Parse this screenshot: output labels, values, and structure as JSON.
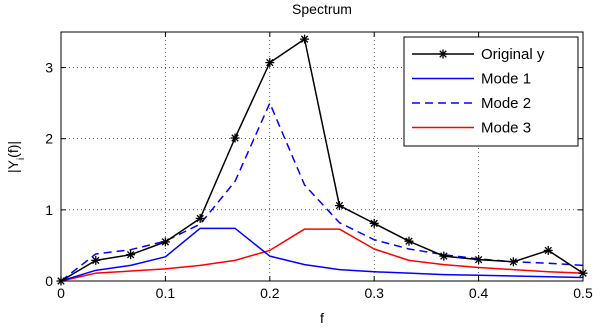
{
  "chart_data": {
    "type": "line",
    "title": "Spectrum",
    "xlabel": "f",
    "ylabel": "|Y_i(f)|",
    "xlim": [
      0,
      0.5
    ],
    "ylim": [
      0,
      3.5
    ],
    "xticks": [
      0,
      0.1,
      0.2,
      0.3,
      0.4,
      0.5
    ],
    "xtick_labels": [
      "0",
      "0.1",
      "0.2",
      "0.3",
      "0.4",
      "0.5"
    ],
    "yticks": [
      0,
      1,
      2,
      3
    ],
    "ytick_labels": [
      "0",
      "1",
      "2",
      "3"
    ],
    "grid": true,
    "legend_position": "top-right",
    "x": [
      0,
      0.0333,
      0.0667,
      0.1,
      0.1333,
      0.1667,
      0.2,
      0.2333,
      0.2667,
      0.3,
      0.3333,
      0.3667,
      0.4,
      0.4333,
      0.4667,
      0.5
    ],
    "series": [
      {
        "name": "Original y",
        "color": "#000000",
        "style": "solid",
        "marker": "*",
        "values": [
          0.0,
          0.29,
          0.37,
          0.55,
          0.88,
          2.01,
          3.07,
          3.4,
          1.06,
          0.81,
          0.56,
          0.35,
          0.3,
          0.27,
          0.43,
          0.11
        ]
      },
      {
        "name": "Mode 1",
        "color": "#0000ff",
        "style": "solid",
        "marker": "",
        "values": [
          0.0,
          0.15,
          0.22,
          0.34,
          0.74,
          0.74,
          0.35,
          0.23,
          0.16,
          0.13,
          0.11,
          0.09,
          0.08,
          0.07,
          0.06,
          0.05
        ]
      },
      {
        "name": "Mode 2",
        "color": "#0000ff",
        "style": "dashed",
        "marker": "",
        "values": [
          0.0,
          0.38,
          0.44,
          0.56,
          0.8,
          1.4,
          2.5,
          1.35,
          0.82,
          0.58,
          0.45,
          0.37,
          0.31,
          0.27,
          0.25,
          0.22
        ]
      },
      {
        "name": "Mode 3",
        "color": "#ff0000",
        "style": "solid",
        "marker": "",
        "values": [
          0.0,
          0.11,
          0.14,
          0.17,
          0.22,
          0.29,
          0.43,
          0.73,
          0.73,
          0.45,
          0.29,
          0.23,
          0.19,
          0.16,
          0.13,
          0.11
        ]
      }
    ]
  }
}
